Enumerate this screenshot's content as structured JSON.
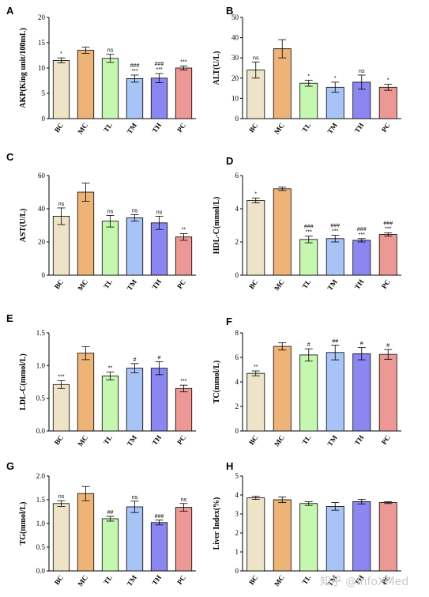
{
  "watermark": "知乎 @InfoXMed",
  "palette": {
    "BC": "#ede3c6",
    "MC": "#eeb477",
    "TL": "#c6f7b0",
    "TM": "#a8c3f5",
    "TH": "#8c87f0",
    "PC": "#ec9895"
  },
  "chart_data": [
    {
      "panel": "A",
      "type": "bar",
      "ylabel": "AKP(King unit/100mL)",
      "categories": [
        "BC",
        "MC",
        "TL",
        "TM",
        "TH",
        "PC"
      ],
      "values": [
        11.5,
        13.5,
        11.9,
        7.9,
        8.0,
        10.0
      ],
      "errors": [
        0.5,
        0.6,
        0.8,
        0.7,
        0.9,
        0.4
      ],
      "annotations": [
        [
          "*"
        ],
        [],
        [
          "ns"
        ],
        [
          "###",
          "***"
        ],
        [
          "###",
          "***"
        ],
        [
          "***"
        ]
      ],
      "ylim": [
        0,
        20
      ],
      "ticks": [
        0,
        5,
        10,
        15,
        20
      ]
    },
    {
      "panel": "B",
      "type": "bar",
      "ylabel": "ALT(U/L)",
      "categories": [
        "BC",
        "MC",
        "TL",
        "TM",
        "TH",
        "PC"
      ],
      "values": [
        24,
        34.5,
        17.5,
        15.5,
        18,
        15.5
      ],
      "errors": [
        4,
        4.5,
        1.5,
        2.5,
        3.5,
        1.5
      ],
      "annotations": [
        [
          "ns"
        ],
        [],
        [
          "*"
        ],
        [
          "*"
        ],
        [
          "ns"
        ],
        [
          "*"
        ]
      ],
      "ylim": [
        0,
        50
      ],
      "ticks": [
        0,
        10,
        20,
        30,
        40,
        50
      ]
    },
    {
      "panel": "C",
      "type": "bar",
      "ylabel": "AST(U/L)",
      "categories": [
        "BC",
        "MC",
        "TL",
        "TM",
        "TH",
        "PC"
      ],
      "values": [
        35.5,
        50,
        32.5,
        34.5,
        31.5,
        23
      ],
      "errors": [
        5,
        5.5,
        3.5,
        2,
        4,
        2
      ],
      "annotations": [
        [
          "ns"
        ],
        [],
        [
          "ns"
        ],
        [
          "ns"
        ],
        [
          "ns"
        ],
        [
          "**"
        ]
      ],
      "ylim": [
        0,
        60
      ],
      "ticks": [
        0,
        20,
        40,
        60
      ]
    },
    {
      "panel": "D",
      "type": "bar",
      "ylabel": "HDL-C(mmol/L)",
      "categories": [
        "BC",
        "MC",
        "TL",
        "TM",
        "TH",
        "PC"
      ],
      "values": [
        4.5,
        5.2,
        2.15,
        2.2,
        2.1,
        2.45
      ],
      "errors": [
        0.15,
        0.1,
        0.2,
        0.2,
        0.1,
        0.1
      ],
      "annotations": [
        [
          "*"
        ],
        [],
        [
          "###",
          "***"
        ],
        [
          "###",
          "***"
        ],
        [
          "###",
          "***"
        ],
        [
          "###",
          "***"
        ]
      ],
      "ylim": [
        0,
        6
      ],
      "ticks": [
        0,
        2,
        4,
        6
      ]
    },
    {
      "panel": "E",
      "type": "bar",
      "ylabel": "LDL-C(mmol/L)",
      "categories": [
        "BC",
        "MC",
        "TL",
        "TM",
        "TH",
        "PC"
      ],
      "values": [
        0.71,
        1.19,
        0.84,
        0.96,
        0.96,
        0.65
      ],
      "errors": [
        0.06,
        0.1,
        0.06,
        0.07,
        0.1,
        0.05
      ],
      "annotations": [
        [
          "***"
        ],
        [],
        [
          "**"
        ],
        [
          "#"
        ],
        [
          "#"
        ],
        [
          "***"
        ]
      ],
      "ylim": [
        0,
        1.5
      ],
      "ticks": [
        0.0,
        0.5,
        1.0,
        1.5
      ]
    },
    {
      "panel": "F",
      "type": "bar",
      "ylabel": "TC(mmol/L)",
      "categories": [
        "BC",
        "MC",
        "TL",
        "TM",
        "TH",
        "PC"
      ],
      "values": [
        4.7,
        6.9,
        6.2,
        6.4,
        6.3,
        6.25
      ],
      "errors": [
        0.2,
        0.3,
        0.5,
        0.6,
        0.5,
        0.4
      ],
      "annotations": [
        [
          "**"
        ],
        [],
        [
          "#"
        ],
        [
          "##"
        ],
        [
          "#"
        ],
        [
          "#"
        ]
      ],
      "ylim": [
        0,
        8
      ],
      "ticks": [
        0,
        2,
        4,
        6,
        8
      ]
    },
    {
      "panel": "G",
      "type": "bar",
      "ylabel": "TG(mmol/L)",
      "categories": [
        "BC",
        "MC",
        "TL",
        "TM",
        "TH",
        "PC"
      ],
      "values": [
        1.42,
        1.63,
        1.1,
        1.35,
        1.02,
        1.34
      ],
      "errors": [
        0.06,
        0.15,
        0.05,
        0.12,
        0.05,
        0.08
      ],
      "annotations": [
        [
          "ns"
        ],
        [],
        [
          "##"
        ],
        [
          "ns"
        ],
        [
          "###"
        ],
        [
          "ns"
        ]
      ],
      "ylim": [
        0,
        2.0
      ],
      "ticks": [
        0.0,
        0.5,
        1.0,
        1.5,
        2.0
      ]
    },
    {
      "panel": "H",
      "type": "bar",
      "ylabel": "Liver Index(%)",
      "categories": [
        "BC",
        "MC",
        "TL",
        "TM",
        "TH",
        "PC"
      ],
      "values": [
        3.85,
        3.75,
        3.55,
        3.4,
        3.65,
        3.6
      ],
      "errors": [
        0.08,
        0.15,
        0.1,
        0.2,
        0.12,
        0.05
      ],
      "annotations": [
        [],
        [],
        [],
        [],
        [],
        []
      ],
      "ylim": [
        0,
        5
      ],
      "ticks": [
        0,
        1,
        2,
        3,
        4,
        5
      ]
    }
  ]
}
